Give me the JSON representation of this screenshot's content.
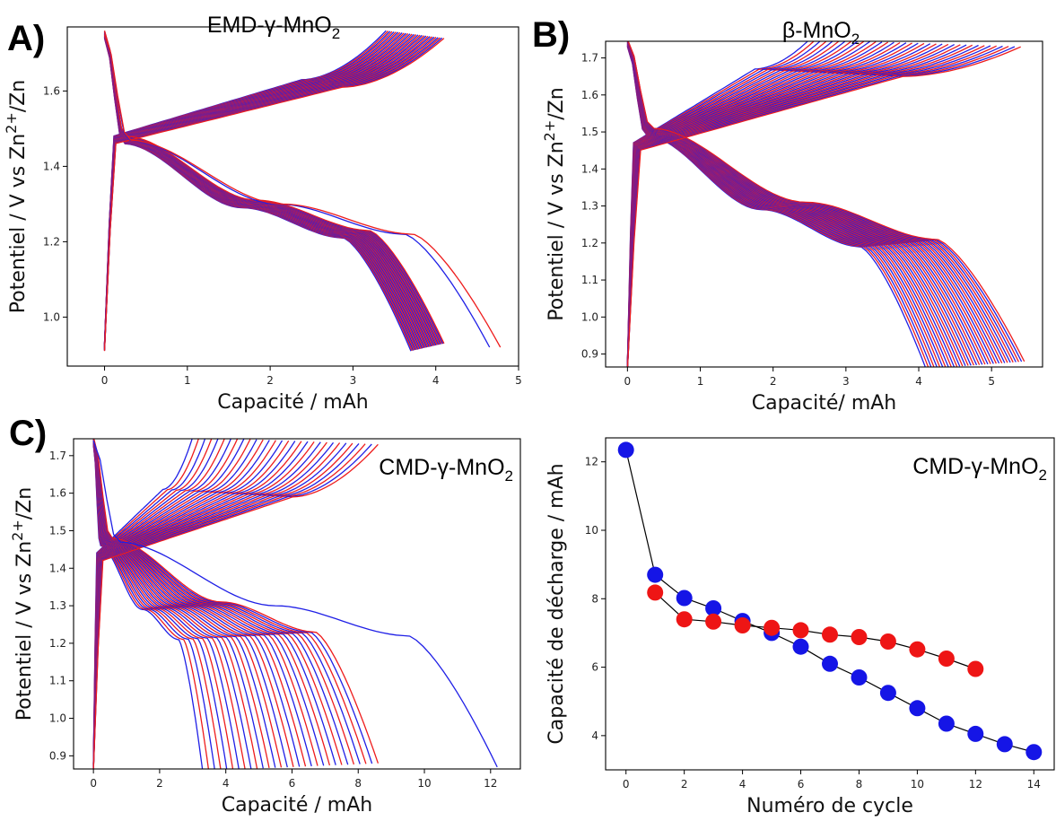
{
  "chart_data": [
    {
      "id": "A",
      "type": "line",
      "panel_letter": "A)",
      "title": "EMD-γ-MnO",
      "title_subscript": "2",
      "title_position": "top",
      "xlabel": "Capacité / mAh",
      "ylabel": "Potentiel / V vs Zn",
      "ylabel_superscript": "2+",
      "ylabel_suffix": "/Zn",
      "xlim": [
        -0.45,
        5.0
      ],
      "ylim": [
        0.87,
        1.77
      ],
      "xticks": [
        0,
        1,
        2,
        3,
        4,
        5
      ],
      "yticks": [
        1.0,
        1.2,
        1.4,
        1.6
      ],
      "ytick_labels": [
        "1.0",
        "1.2",
        "1.4",
        "1.6"
      ],
      "series_colors": [
        "#1f1fe6",
        "#ee1c1c"
      ],
      "profile": {
        "v_top": 1.75,
        "v_bottom": 0.92,
        "charge_plateau": 1.5,
        "charge_end": 1.62,
        "discharge_high": 1.42,
        "discharge_low": 1.3,
        "discharge_knee": 1.22,
        "cap_start_charge": 3.4,
        "cap_end_charge": 4.1,
        "cap_start_discharge": 3.7,
        "cap_end_discharge": 4.1,
        "outlier_discharge": [
          4.65,
          4.78
        ],
        "curves": 30
      }
    },
    {
      "id": "B",
      "type": "line",
      "panel_letter": "B)",
      "title": "β-MnO",
      "title_subscript": "2",
      "title_position": "top",
      "xlabel": "Capacité/ mAh",
      "ylabel": "Potentiel / V vs Zn",
      "ylabel_superscript": "2+",
      "ylabel_suffix": "/Zn",
      "xlim": [
        -0.3,
        5.7
      ],
      "ylim": [
        0.865,
        1.745
      ],
      "xticks": [
        0,
        1,
        2,
        3,
        4,
        5
      ],
      "yticks": [
        0.9,
        1.0,
        1.1,
        1.2,
        1.3,
        1.4,
        1.5,
        1.6,
        1.7
      ],
      "ytick_labels": [
        "0.9",
        "1.0",
        "1.1",
        "1.2",
        "1.3",
        "1.4",
        "1.5",
        "1.6",
        "1.7"
      ],
      "series_colors": [
        "#1f1fe6",
        "#ee1c1c"
      ],
      "profile": {
        "v_top": 1.74,
        "v_bottom": 0.87,
        "charge_plateau": 1.49,
        "charge_end": 1.66,
        "discharge_high": 1.45,
        "discharge_low": 1.3,
        "discharge_knee": 1.2,
        "cap_start_charge": 2.5,
        "cap_end_charge": 5.4,
        "cap_start_discharge": 4.1,
        "cap_end_discharge": 5.45,
        "outlier_discharge": [],
        "curves": 36
      }
    },
    {
      "id": "C",
      "type": "line",
      "panel_letter": "C)",
      "title": "CMD-γ-MnO",
      "title_subscript": "2",
      "title_position": "inside-top-right",
      "xlabel": "Capacité / mAh",
      "ylabel": "Potentiel / V vs Zn",
      "ylabel_superscript": "2+",
      "ylabel_suffix": "/Zn",
      "xlim": [
        -0.6,
        12.9
      ],
      "ylim": [
        0.865,
        1.745
      ],
      "xticks": [
        0,
        2,
        4,
        6,
        8,
        10,
        12
      ],
      "yticks": [
        0.9,
        1.0,
        1.1,
        1.2,
        1.3,
        1.4,
        1.5,
        1.6,
        1.7
      ],
      "ytick_labels": [
        "0.9",
        "1.0",
        "1.1",
        "1.2",
        "1.3",
        "1.4",
        "1.5",
        "1.6",
        "1.7"
      ],
      "series_colors": [
        "#1f1fe6",
        "#ee1c1c"
      ],
      "profile": {
        "v_top": 1.74,
        "v_bottom": 0.87,
        "charge_plateau": 1.46,
        "charge_end": 1.6,
        "discharge_high": 1.42,
        "discharge_low": 1.3,
        "discharge_knee": 1.22,
        "cap_start_charge": 3.0,
        "cap_end_charge": 8.6,
        "cap_start_discharge": 3.3,
        "cap_end_discharge": 8.6,
        "outlier_discharge": [
          12.2
        ],
        "curves": 30
      }
    },
    {
      "id": "D",
      "type": "scatter",
      "panel_letter": "",
      "title": "CMD-γ-MnO",
      "title_subscript": "2",
      "title_position": "inside-top-right",
      "xlabel": "Numéro de cycle",
      "ylabel": "Capacité de décharge / mAh",
      "xlim": [
        -0.7,
        14.7
      ],
      "ylim": [
        3.0,
        12.7
      ],
      "xticks": [
        0,
        2,
        4,
        6,
        8,
        10,
        12,
        14
      ],
      "yticks": [
        4,
        6,
        8,
        10,
        12
      ],
      "ytick_labels": [
        "4",
        "6",
        "8",
        "10",
        "12"
      ],
      "series": [
        {
          "color": "#1515e6",
          "x": [
            0,
            1,
            2,
            3,
            4,
            5,
            6,
            7,
            8,
            9,
            10,
            11,
            12,
            13,
            14
          ],
          "y": [
            12.35,
            8.7,
            8.02,
            7.72,
            7.35,
            7.0,
            6.6,
            6.1,
            5.7,
            5.25,
            4.8,
            4.35,
            4.05,
            3.75,
            3.52
          ]
        },
        {
          "color": "#ee1515",
          "x": [
            1,
            2,
            3,
            4,
            5,
            6,
            7,
            8,
            9,
            10,
            11,
            12
          ],
          "y": [
            8.18,
            7.4,
            7.33,
            7.22,
            7.15,
            7.08,
            6.95,
            6.88,
            6.75,
            6.52,
            6.25,
            5.95
          ]
        }
      ]
    }
  ]
}
